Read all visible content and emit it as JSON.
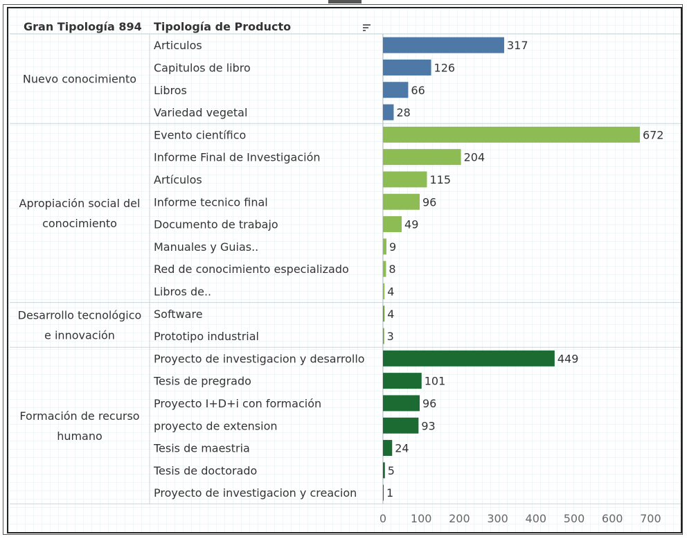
{
  "headers": {
    "group_header": "Gran Tipología 894",
    "category_header": "Tipología de Producto",
    "sort_icon": "sort-descending-icon"
  },
  "colors": {
    "Nuevo conocimiento": "#4e79a7",
    "Apropiación social del conocimiento": "#8cbc53",
    "Desarrollo tecnológico e innovación": "#6e9e3c",
    "Formación de recurso humano": "#1b6b33"
  },
  "chart_data": {
    "type": "bar",
    "orientation": "horizontal",
    "xlim": [
      0,
      700
    ],
    "xticks": [
      0,
      100,
      200,
      300,
      400,
      500,
      600,
      700
    ],
    "grid": true,
    "groups": [
      {
        "name": "Nuevo conocimiento",
        "label_lines": [
          "Nuevo conocimiento"
        ],
        "items": [
          {
            "category": "Articulos",
            "value": 317
          },
          {
            "category": "Capitulos de libro",
            "value": 126
          },
          {
            "category": "Libros",
            "value": 66
          },
          {
            "category": "Variedad vegetal",
            "value": 28
          }
        ]
      },
      {
        "name": "Apropiación social del conocimiento",
        "label_lines": [
          "Apropiación social del",
          "conocimiento"
        ],
        "items": [
          {
            "category": "Evento científico",
            "value": 672
          },
          {
            "category": "Informe Final de Investigación",
            "value": 204
          },
          {
            "category": "Artículos",
            "value": 115
          },
          {
            "category": "Informe tecnico final",
            "value": 96
          },
          {
            "category": "Documento de trabajo",
            "value": 49
          },
          {
            "category": "Manuales y Guias..",
            "value": 9
          },
          {
            "category": "Red de conocimiento especializado",
            "value": 8
          },
          {
            "category": "Libros de..",
            "value": 4
          }
        ]
      },
      {
        "name": "Desarrollo tecnológico e innovación",
        "label_lines": [
          "Desarrollo tecnológico",
          "e innovación"
        ],
        "items": [
          {
            "category": "Software",
            "value": 4
          },
          {
            "category": "Prototipo industrial",
            "value": 3
          }
        ]
      },
      {
        "name": "Formación de recurso humano",
        "label_lines": [
          "Formación de recurso",
          "humano"
        ],
        "items": [
          {
            "category": "Proyecto de investigacion y desarrollo",
            "value": 449
          },
          {
            "category": "Tesis de pregrado",
            "value": 101
          },
          {
            "category": "Proyecto I+D+i con formación",
            "value": 96
          },
          {
            "category": "proyecto de extension",
            "value": 93
          },
          {
            "category": "Tesis de maestria",
            "value": 24
          },
          {
            "category": "Tesis de doctorado",
            "value": 5
          },
          {
            "category": "Proyecto de investigacion y creacion",
            "value": 1
          }
        ]
      }
    ]
  }
}
